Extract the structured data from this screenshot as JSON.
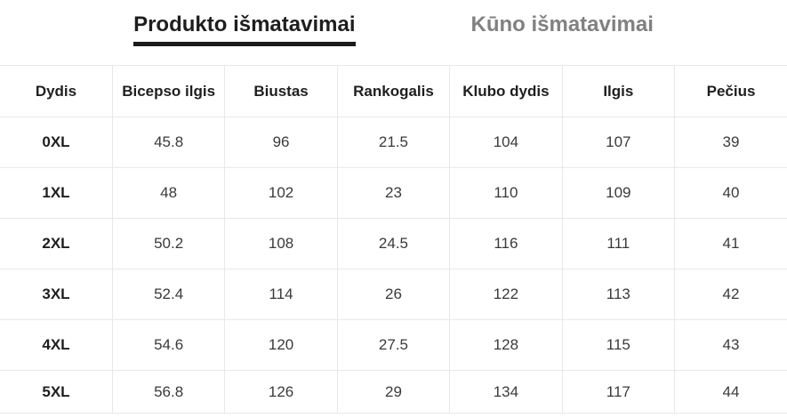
{
  "tabs": [
    {
      "label": "Produkto išmatavimai",
      "active": true
    },
    {
      "label": "Kūno išmatavimai",
      "active": false
    }
  ],
  "table": {
    "columns": [
      "Dydis",
      "Bicepso ilgis",
      "Biustas",
      "Rankogalis",
      "Klubo dydis",
      "Ilgis",
      "Pečius"
    ],
    "rows": [
      {
        "size": "0XL",
        "values": [
          "45.8",
          "96",
          "21.5",
          "104",
          "107",
          "39"
        ]
      },
      {
        "size": "1XL",
        "values": [
          "48",
          "102",
          "23",
          "110",
          "109",
          "40"
        ]
      },
      {
        "size": "2XL",
        "values": [
          "50.2",
          "108",
          "24.5",
          "116",
          "111",
          "41"
        ]
      },
      {
        "size": "3XL",
        "values": [
          "52.4",
          "114",
          "26",
          "122",
          "113",
          "42"
        ]
      },
      {
        "size": "4XL",
        "values": [
          "54.6",
          "120",
          "27.5",
          "128",
          "115",
          "43"
        ]
      },
      {
        "size": "5XL",
        "values": [
          "56.8",
          "126",
          "29",
          "134",
          "117",
          "44"
        ]
      }
    ]
  },
  "colors": {
    "active_tab_text": "#1e1e1e",
    "active_tab_underline": "#1b1b1b",
    "inactive_tab_text": "#818181",
    "header_text": "#1f1f1f",
    "cell_text": "#3a3a3a",
    "border": "#e8e8e8",
    "background": "#ffffff"
  }
}
